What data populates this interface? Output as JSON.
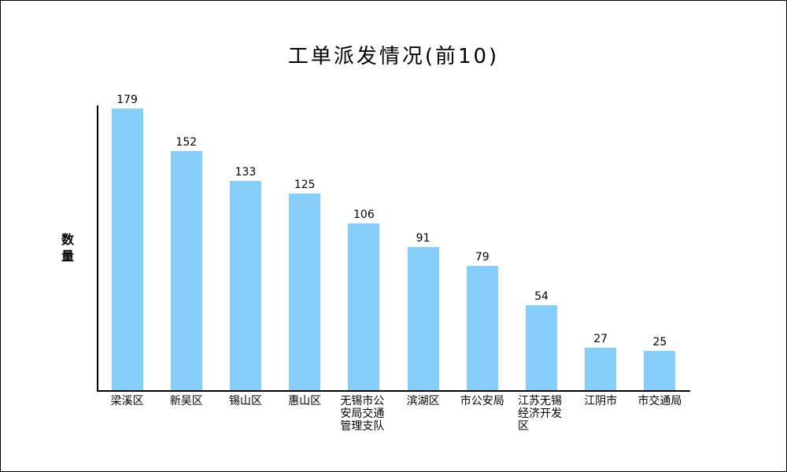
{
  "chart_data": {
    "type": "bar",
    "title": "工单派发情况(前10)",
    "ylabel": "数量",
    "xlabel": "",
    "categories": [
      "梁溪区",
      "新吴区",
      "锡山区",
      "惠山区",
      "无锡市公安局交通管理支队",
      "滨湖区",
      "市公安局",
      "江苏无锡经济开发区",
      "江阴市",
      "市交通局"
    ],
    "values": [
      179,
      152,
      133,
      125,
      106,
      91,
      79,
      54,
      27,
      25
    ],
    "ylim": [
      0,
      185
    ],
    "grid": false,
    "legend": "none",
    "value_labels_shown": true,
    "bar_color": "#87CEFA",
    "axis_color": "#000000",
    "text_color": "#000000",
    "background_color": "#ffffff"
  }
}
